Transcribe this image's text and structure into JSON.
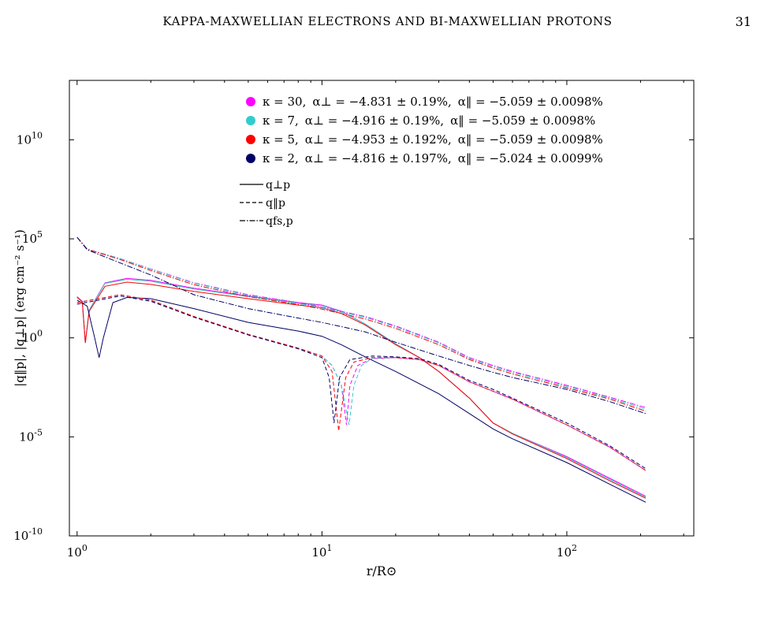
{
  "header": {
    "running_title": "KAPPA-MAXWELLIAN ELECTRONS AND BI-MAXWELLIAN PROTONS",
    "page_number": "31"
  },
  "chart_data": {
    "type": "line",
    "xlabel": "r/R⊙",
    "ylabel": "|q‖p|, |q⊥p|  (erg  cm⁻²  s⁻¹)",
    "x_scale": "log",
    "y_scale": "log",
    "xlim": [
      0.93,
      330
    ],
    "ylim": [
      1e-10,
      10000000000000.0
    ],
    "x_ticks": [
      {
        "value": 1,
        "base": "10",
        "exp": "0"
      },
      {
        "value": 10,
        "base": "10",
        "exp": "1"
      },
      {
        "value": 100,
        "base": "10",
        "exp": "2"
      }
    ],
    "y_ticks": [
      {
        "value": 1e-10,
        "base": "10",
        "exp": "-10"
      },
      {
        "value": 1e-05,
        "base": "10",
        "exp": "-5"
      },
      {
        "value": 1,
        "base": "10",
        "exp": "0"
      },
      {
        "value": 100000.0,
        "base": "10",
        "exp": "5"
      },
      {
        "value": 10000000000.0,
        "base": "10",
        "exp": "10"
      }
    ],
    "grid": false,
    "legend_placement": "top-center",
    "legend_color_entries": [
      {
        "kappa": "κ = 30,",
        "alpha_perp": "α⊥ = −4.831 ± 0.19%,",
        "alpha_par": "α‖ = −5.059 ± 0.0098%",
        "color": "#ff00ff"
      },
      {
        "kappa": "κ = 7,",
        "alpha_perp": "α⊥ = −4.916 ± 0.19%,",
        "alpha_par": "α‖ = −5.059 ± 0.0098%",
        "color": "#33cccc"
      },
      {
        "kappa": "κ = 5,",
        "alpha_perp": "α⊥ = −4.953 ± 0.192%,",
        "alpha_par": "α‖ = −5.059 ± 0.0098%",
        "color": "#ff0000"
      },
      {
        "kappa": "κ = 2,",
        "alpha_perp": "α⊥ = −4.816 ± 0.197%,",
        "alpha_par": "α‖ = −5.024 ± 0.0099%",
        "color": "#000066"
      }
    ],
    "legend_line_entries": [
      {
        "label": "q⊥p",
        "dash": "solid"
      },
      {
        "label": "q‖p",
        "dash": "dashed"
      },
      {
        "label": "qfs,p",
        "dash": "dashdot"
      }
    ],
    "series": [
      {
        "color": "#ff00ff",
        "dash": "solid",
        "points": [
          [
            1.0,
            120
          ],
          [
            1.05,
            70
          ],
          [
            1.08,
            0.6
          ],
          [
            1.12,
            25
          ],
          [
            1.3,
            600
          ],
          [
            1.6,
            1000
          ],
          [
            2,
            800
          ],
          [
            3,
            320
          ],
          [
            5,
            130
          ],
          [
            8,
            60
          ],
          [
            10,
            45
          ],
          [
            12,
            22
          ],
          [
            15,
            5
          ],
          [
            20,
            0.5
          ],
          [
            25,
            0.1
          ],
          [
            30,
            0.02
          ],
          [
            40,
            0.0009
          ],
          [
            50,
            5e-05
          ],
          [
            60,
            1.5e-05
          ],
          [
            100,
            1e-06
          ],
          [
            150,
            8e-08
          ],
          [
            210,
            1e-08
          ]
        ]
      },
      {
        "color": "#33cccc",
        "dash": "solid",
        "points": [
          [
            1.0,
            115
          ],
          [
            1.05,
            68
          ],
          [
            1.08,
            0.58
          ],
          [
            1.12,
            24
          ],
          [
            1.3,
            560
          ],
          [
            1.6,
            900
          ],
          [
            2,
            720
          ],
          [
            3,
            290
          ],
          [
            5,
            120
          ],
          [
            8,
            55
          ],
          [
            10,
            42
          ],
          [
            12,
            21
          ],
          [
            15,
            5
          ],
          [
            20,
            0.5
          ],
          [
            25,
            0.1
          ],
          [
            30,
            0.02
          ],
          [
            40,
            0.0009
          ],
          [
            50,
            5e-05
          ],
          [
            60,
            1.5e-05
          ],
          [
            100,
            9e-07
          ],
          [
            150,
            7e-08
          ],
          [
            210,
            9e-09
          ]
        ]
      },
      {
        "color": "#ff0000",
        "dash": "solid",
        "points": [
          [
            1.0,
            110
          ],
          [
            1.05,
            65
          ],
          [
            1.08,
            0.55
          ],
          [
            1.12,
            22
          ],
          [
            1.3,
            400
          ],
          [
            1.6,
            650
          ],
          [
            2,
            500
          ],
          [
            3,
            220
          ],
          [
            5,
            95
          ],
          [
            8,
            45
          ],
          [
            10,
            33
          ],
          [
            12,
            17
          ],
          [
            15,
            4.5
          ],
          [
            20,
            0.45
          ],
          [
            25,
            0.1
          ],
          [
            30,
            0.02
          ],
          [
            40,
            0.0009
          ],
          [
            50,
            5e-05
          ],
          [
            60,
            1.4e-05
          ],
          [
            100,
            8e-07
          ],
          [
            150,
            6e-08
          ],
          [
            210,
            8e-09
          ]
        ]
      },
      {
        "color": "#000066",
        "dash": "solid",
        "points": [
          [
            1.0,
            80
          ],
          [
            1.1,
            40
          ],
          [
            1.18,
            1
          ],
          [
            1.23,
            0.1
          ],
          [
            1.28,
            1
          ],
          [
            1.4,
            60
          ],
          [
            1.6,
            110
          ],
          [
            2,
            95
          ],
          [
            3,
            30
          ],
          [
            5,
            6
          ],
          [
            8,
            2.2
          ],
          [
            10,
            1.2
          ],
          [
            12,
            0.45
          ],
          [
            15,
            0.11
          ],
          [
            20,
            0.02
          ],
          [
            30,
            0.0015
          ],
          [
            40,
            0.00015
          ],
          [
            50,
            2.5e-05
          ],
          [
            60,
            8e-06
          ],
          [
            100,
            5e-07
          ],
          [
            150,
            4e-08
          ],
          [
            210,
            5e-09
          ]
        ]
      },
      {
        "color": "#ff00ff",
        "dash": "dashed",
        "points": [
          [
            1.0,
            60
          ],
          [
            1.5,
            150
          ],
          [
            2,
            80
          ],
          [
            3,
            12
          ],
          [
            5,
            1.5
          ],
          [
            8,
            0.3
          ],
          [
            10,
            0.12
          ],
          [
            11,
            0.04
          ],
          [
            12,
            0.004
          ],
          [
            12.6,
            4e-05
          ],
          [
            13,
            0.004
          ],
          [
            14,
            0.04
          ],
          [
            16,
            0.09
          ],
          [
            20,
            0.1
          ],
          [
            25,
            0.08
          ],
          [
            30,
            0.04
          ],
          [
            40,
            0.006
          ],
          [
            50,
            0.002
          ],
          [
            60,
            0.0008
          ],
          [
            100,
            4e-05
          ],
          [
            150,
            3e-06
          ],
          [
            210,
            2e-07
          ]
        ]
      },
      {
        "color": "#33cccc",
        "dash": "dashed",
        "points": [
          [
            1.0,
            60
          ],
          [
            1.5,
            150
          ],
          [
            2,
            80
          ],
          [
            3,
            12
          ],
          [
            5,
            1.5
          ],
          [
            8,
            0.3
          ],
          [
            10,
            0.12
          ],
          [
            11,
            0.04
          ],
          [
            12,
            0.004
          ],
          [
            12.9,
            4e-05
          ],
          [
            13.5,
            0.004
          ],
          [
            14.5,
            0.04
          ],
          [
            16,
            0.09
          ],
          [
            20,
            0.1
          ],
          [
            25,
            0.08
          ],
          [
            30,
            0.04
          ],
          [
            40,
            0.006
          ],
          [
            50,
            0.002
          ],
          [
            60,
            0.0008
          ],
          [
            100,
            4e-05
          ],
          [
            150,
            3e-06
          ],
          [
            210,
            2e-07
          ]
        ]
      },
      {
        "color": "#ff0000",
        "dash": "dashed",
        "points": [
          [
            1.0,
            60
          ],
          [
            1.5,
            150
          ],
          [
            2,
            80
          ],
          [
            3,
            12
          ],
          [
            5,
            1.5
          ],
          [
            8,
            0.3
          ],
          [
            10,
            0.12
          ],
          [
            11,
            0.02
          ],
          [
            11.7,
            2e-05
          ],
          [
            12.5,
            0.01
          ],
          [
            13.5,
            0.06
          ],
          [
            16,
            0.1
          ],
          [
            20,
            0.1
          ],
          [
            25,
            0.08
          ],
          [
            30,
            0.04
          ],
          [
            40,
            0.006
          ],
          [
            50,
            0.002
          ],
          [
            60,
            0.0008
          ],
          [
            100,
            4e-05
          ],
          [
            150,
            3e-06
          ],
          [
            210,
            2e-07
          ]
        ]
      },
      {
        "color": "#000066",
        "dash": "dashed",
        "points": [
          [
            1.0,
            50
          ],
          [
            1.5,
            130
          ],
          [
            2,
            70
          ],
          [
            3,
            11
          ],
          [
            5,
            1.4
          ],
          [
            8,
            0.28
          ],
          [
            10,
            0.1
          ],
          [
            10.7,
            0.01
          ],
          [
            11.2,
            5e-05
          ],
          [
            11.8,
            0.01
          ],
          [
            13,
            0.08
          ],
          [
            16,
            0.12
          ],
          [
            20,
            0.11
          ],
          [
            25,
            0.09
          ],
          [
            30,
            0.045
          ],
          [
            40,
            0.007
          ],
          [
            50,
            0.0025
          ],
          [
            60,
            0.0009
          ],
          [
            100,
            5e-05
          ],
          [
            150,
            3.5e-06
          ],
          [
            210,
            2.5e-07
          ]
        ]
      },
      {
        "color": "#ff00ff",
        "dash": "dashdot",
        "points": [
          [
            1.0,
            120000
          ],
          [
            1.1,
            30000
          ],
          [
            1.5,
            10000
          ],
          [
            2,
            3000
          ],
          [
            3,
            600
          ],
          [
            5,
            150
          ],
          [
            8,
            60
          ],
          [
            10,
            35
          ],
          [
            15,
            12
          ],
          [
            20,
            4
          ],
          [
            30,
            0.6
          ],
          [
            40,
            0.1
          ],
          [
            50,
            0.04
          ],
          [
            60,
            0.02
          ],
          [
            100,
            0.004
          ],
          [
            150,
            0.001
          ],
          [
            210,
            0.0003
          ]
        ]
      },
      {
        "color": "#33cccc",
        "dash": "dashdot",
        "points": [
          [
            1.0,
            120000
          ],
          [
            1.1,
            30000
          ],
          [
            1.5,
            10000
          ],
          [
            2,
            2900
          ],
          [
            3,
            570
          ],
          [
            5,
            140
          ],
          [
            8,
            55
          ],
          [
            10,
            32
          ],
          [
            15,
            11
          ],
          [
            20,
            3.6
          ],
          [
            30,
            0.55
          ],
          [
            40,
            0.09
          ],
          [
            50,
            0.035
          ],
          [
            60,
            0.018
          ],
          [
            100,
            0.0035
          ],
          [
            150,
            0.0009
          ],
          [
            210,
            0.00025
          ]
        ]
      },
      {
        "color": "#ff0000",
        "dash": "dashdot",
        "points": [
          [
            1.0,
            120000
          ],
          [
            1.1,
            30000
          ],
          [
            1.5,
            9000
          ],
          [
            2,
            2500
          ],
          [
            3,
            480
          ],
          [
            5,
            120
          ],
          [
            8,
            48
          ],
          [
            10,
            28
          ],
          [
            15,
            9
          ],
          [
            20,
            3
          ],
          [
            30,
            0.45
          ],
          [
            40,
            0.08
          ],
          [
            50,
            0.03
          ],
          [
            60,
            0.015
          ],
          [
            100,
            0.003
          ],
          [
            150,
            0.0008
          ],
          [
            210,
            0.0002
          ]
        ]
      },
      {
        "color": "#000066",
        "dash": "dashdot",
        "points": [
          [
            1.0,
            120000
          ],
          [
            1.1,
            28000
          ],
          [
            1.5,
            6000
          ],
          [
            2,
            1500
          ],
          [
            3,
            150
          ],
          [
            5,
            30
          ],
          [
            8,
            10
          ],
          [
            10,
            6
          ],
          [
            15,
            2
          ],
          [
            20,
            0.6
          ],
          [
            30,
            0.12
          ],
          [
            40,
            0.04
          ],
          [
            50,
            0.018
          ],
          [
            60,
            0.01
          ],
          [
            100,
            0.0025
          ],
          [
            150,
            0.0006
          ],
          [
            210,
            0.00015
          ]
        ]
      }
    ]
  }
}
